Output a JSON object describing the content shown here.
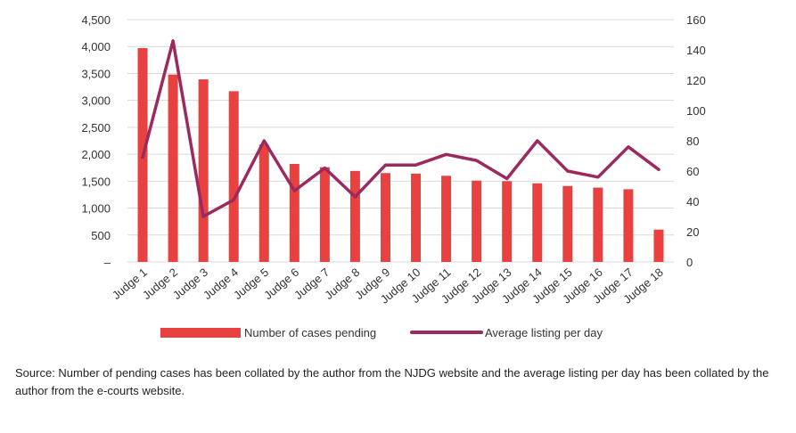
{
  "chart_data": {
    "type": "bar+line",
    "categories": [
      "Judge 1",
      "Judge 2",
      "Judge 3",
      "Judge 4",
      "Judge 5",
      "Judge 6",
      "Judge 7",
      "Judge 8",
      "Judge 9",
      "Judge 10",
      "Judge 11",
      "Judge 12",
      "Judge 13",
      "Judge 14",
      "Judge 15",
      "Judge 16",
      "Judge 17",
      "Judge 18"
    ],
    "series": [
      {
        "name": "Number of cases pending",
        "kind": "bar",
        "axis": "left",
        "color": "#e8413f",
        "values": [
          3970,
          3480,
          3390,
          3170,
          2180,
          1820,
          1760,
          1690,
          1650,
          1640,
          1600,
          1510,
          1500,
          1460,
          1410,
          1380,
          1350,
          600
        ]
      },
      {
        "name": "Average listing per day",
        "kind": "line",
        "axis": "right",
        "color": "#9b2a5e",
        "values": [
          69,
          146,
          30,
          41,
          80,
          47,
          62,
          43,
          64,
          64,
          71,
          67,
          55,
          80,
          60,
          56,
          76,
          61
        ]
      }
    ],
    "y_left": {
      "min": 0,
      "max": 4500,
      "ticks": [
        4500,
        4000,
        3500,
        3000,
        2500,
        2000,
        1500,
        1000,
        500
      ],
      "tick_labels": [
        "4,500",
        "4,000",
        "3,500",
        "3,000",
        "2,500",
        "2,000",
        "1,500",
        "1,000",
        "500"
      ],
      "zero_label": "–"
    },
    "y_right": {
      "min": 0,
      "max": 160,
      "ticks": [
        160,
        140,
        120,
        100,
        80,
        60,
        40,
        20,
        0
      ]
    },
    "grid": true,
    "legend_position": "bottom"
  },
  "source_text": "Source: Number of pending cases has been collated by the author from the NJDG website and the average listing per day has been collated by the author from the e-courts website."
}
